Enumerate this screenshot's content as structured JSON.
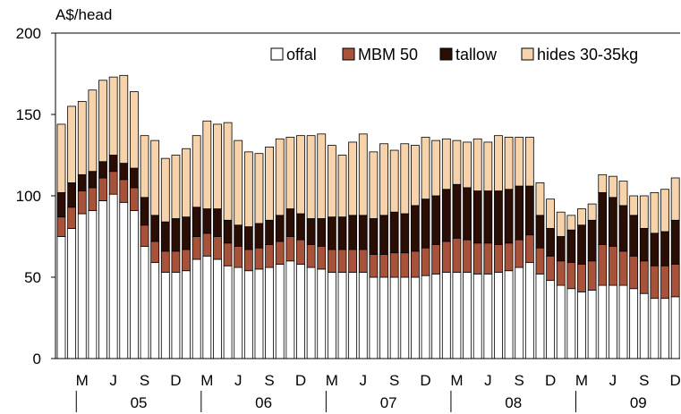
{
  "chart_data": {
    "type": "bar",
    "stacked": true,
    "ylabel": "A$/head",
    "ylim": [
      0,
      200
    ],
    "yticks": [
      0,
      50,
      100,
      150,
      200
    ],
    "grid": false,
    "legend_position": "top-right",
    "month_labels": [
      "M",
      "J",
      "S",
      "D",
      "M",
      "J",
      "S",
      "D",
      "M",
      "J",
      "S",
      "D",
      "M",
      "J",
      "S",
      "D",
      "M",
      "J",
      "S",
      "D"
    ],
    "year_labels": [
      "05",
      "06",
      "07",
      "08",
      "09"
    ],
    "colors": {
      "offal": "#ffffff",
      "mbm": "#a9523a",
      "tallow": "#2a0e05",
      "hides": "#f7d3ac"
    },
    "series": [
      {
        "name": "offal",
        "values": [
          75,
          80,
          89,
          91,
          97,
          101,
          96,
          91,
          69,
          59,
          53,
          53,
          54,
          61,
          63,
          61,
          57,
          56,
          54,
          55,
          56,
          58,
          60,
          58,
          56,
          55,
          53,
          53,
          53,
          53,
          50,
          50,
          50,
          50,
          50,
          51,
          52,
          53,
          53,
          53,
          52,
          52,
          53,
          54,
          56,
          59,
          52,
          48,
          45,
          43,
          41,
          42,
          45,
          45,
          45,
          43,
          40,
          37,
          37,
          38
        ]
      },
      {
        "name": "MBM 50",
        "values": [
          12,
          13,
          14,
          14,
          14,
          14,
          14,
          14,
          13,
          13,
          13,
          13,
          13,
          14,
          14,
          14,
          14,
          13,
          13,
          13,
          14,
          14,
          15,
          15,
          14,
          14,
          14,
          14,
          14,
          14,
          14,
          14,
          15,
          15,
          16,
          17,
          18,
          19,
          21,
          20,
          19,
          19,
          17,
          17,
          17,
          17,
          16,
          15,
          15,
          16,
          17,
          18,
          25,
          24,
          21,
          20,
          20,
          20,
          20,
          20
        ]
      },
      {
        "name": "tallow",
        "values": [
          15,
          15,
          10,
          10,
          10,
          10,
          10,
          12,
          17,
          16,
          18,
          20,
          20,
          18,
          15,
          17,
          14,
          13,
          14,
          15,
          15,
          16,
          17,
          16,
          16,
          17,
          20,
          20,
          21,
          21,
          22,
          24,
          25,
          24,
          28,
          30,
          30,
          32,
          33,
          32,
          32,
          32,
          33,
          33,
          33,
          30,
          20,
          17,
          15,
          20,
          24,
          25,
          32,
          30,
          28,
          25,
          20,
          20,
          21,
          27
        ]
      },
      {
        "name": "hides 30-35kg",
        "values": [
          42,
          47,
          45,
          50,
          50,
          48,
          54,
          47,
          38,
          46,
          39,
          39,
          42,
          44,
          54,
          52,
          60,
          52,
          46,
          43,
          45,
          47,
          44,
          48,
          51,
          52,
          44,
          38,
          45,
          50,
          41,
          44,
          38,
          43,
          37,
          38,
          34,
          31,
          27,
          28,
          32,
          30,
          34,
          32,
          30,
          30,
          20,
          18,
          15,
          9,
          10,
          10,
          11,
          13,
          15,
          12,
          20,
          25,
          26,
          26
        ]
      }
    ]
  }
}
